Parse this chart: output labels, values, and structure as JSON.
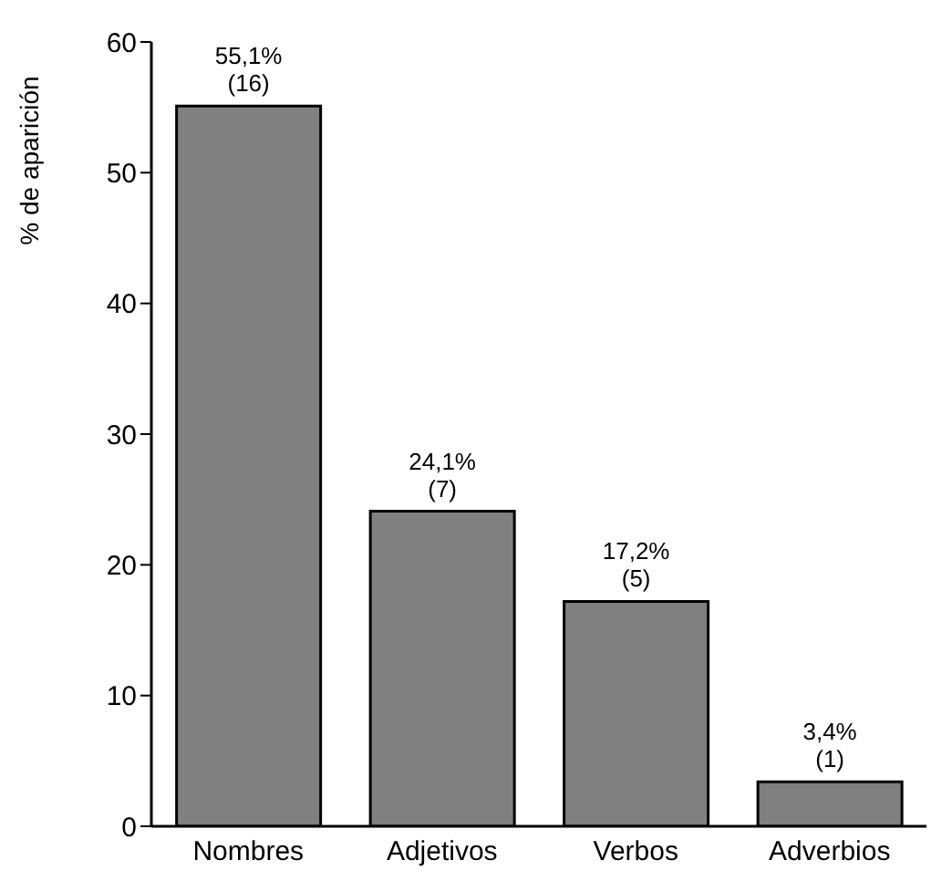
{
  "chart_data": {
    "type": "bar",
    "ylabel": "% de aparición",
    "categories": [
      "Nombres",
      "Adjetivos",
      "Verbos",
      "Adverbios"
    ],
    "values": [
      55.1,
      24.1,
      17.2,
      3.4
    ],
    "value_labels": [
      "55,1%\n(16)",
      "24,1%\n(7)",
      "17,2%\n(5)",
      "3,4%\n(1)"
    ],
    "color": "#808080",
    "ylim": [
      0,
      60
    ],
    "yticks": [
      0,
      10,
      20,
      30,
      40,
      50,
      60
    ],
    "grid": false
  }
}
